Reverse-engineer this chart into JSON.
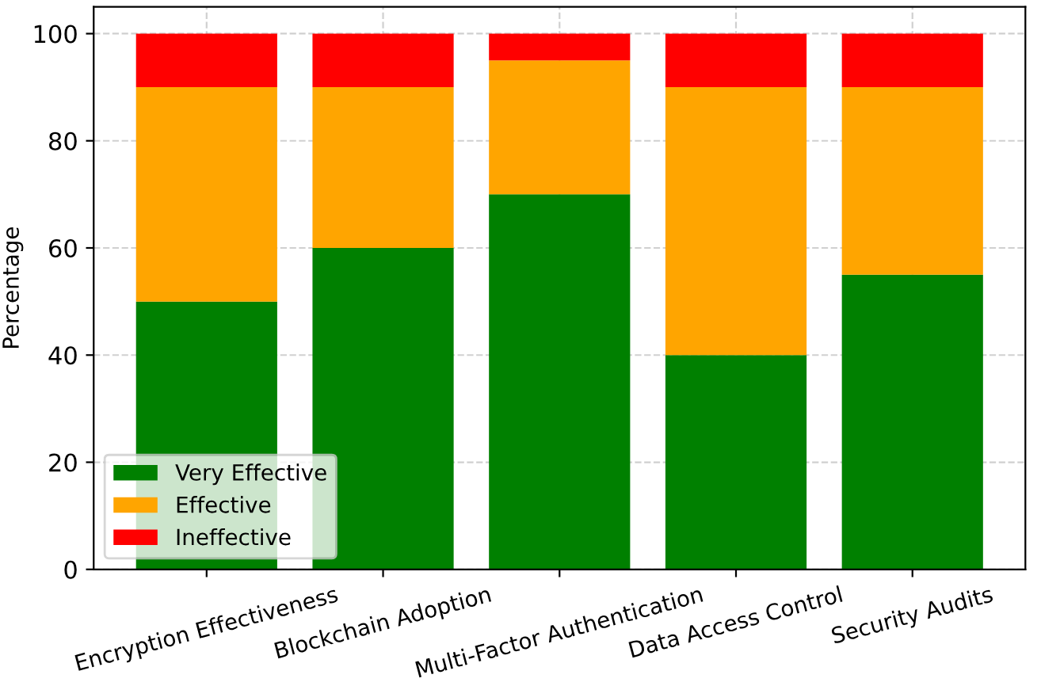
{
  "chart_data": {
    "type": "bar",
    "stacked": true,
    "ylabel": "Percentage",
    "categories": [
      "Encryption Effectiveness",
      "Blockchain Adoption",
      "Multi-Factor Authentication",
      "Data Access Control",
      "Security Audits"
    ],
    "series": [
      {
        "name": "Very Effective",
        "color": "#008000",
        "values": [
          50,
          60,
          70,
          40,
          55
        ]
      },
      {
        "name": "Effective",
        "color": "#ffa500",
        "values": [
          40,
          30,
          25,
          50,
          35
        ]
      },
      {
        "name": "Ineffective",
        "color": "#ff0000",
        "values": [
          10,
          10,
          5,
          10,
          10
        ]
      }
    ],
    "ylim": [
      0,
      105
    ],
    "yticks": [
      0,
      20,
      40,
      60,
      80,
      100
    ],
    "grid": true,
    "legend": "bottom left"
  }
}
